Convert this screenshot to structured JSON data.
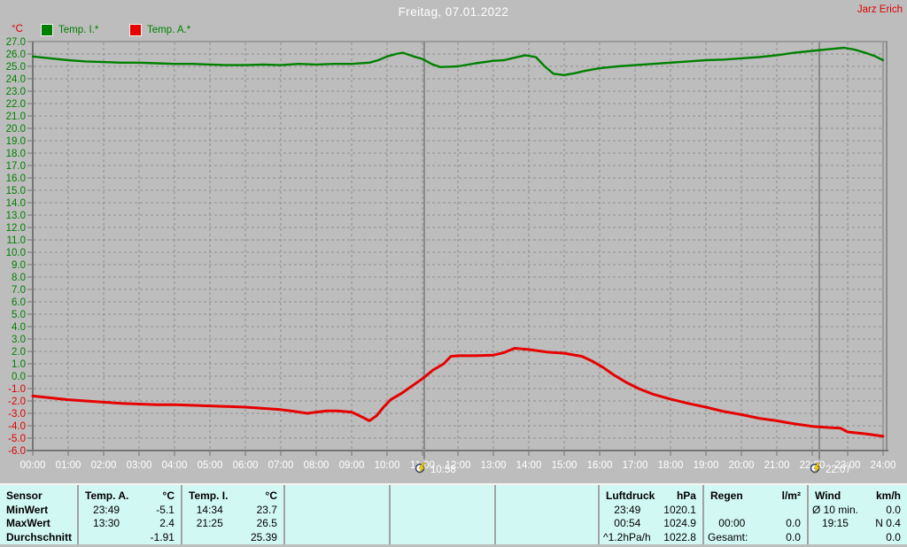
{
  "header": {
    "user": "Jarz Erich"
  },
  "chart_data": {
    "type": "line",
    "title": "Freitag, 07.01.2022",
    "ylabel": "°C",
    "ylim": [
      -6,
      27
    ],
    "ytick_step": 1,
    "xlim_hours": [
      0,
      24
    ],
    "xtick_labels": [
      "00:00",
      "01:00",
      "02:00",
      "03:00",
      "04:00",
      "05:00",
      "06:00",
      "07:00",
      "08:00",
      "09:00",
      "10:00",
      "11:00",
      "12:00",
      "13:00",
      "14:00",
      "15:00",
      "16:00",
      "17:00",
      "18:00",
      "19:00",
      "20:00",
      "21:00",
      "22:00",
      "23:00",
      "24:00"
    ],
    "grid": "dashed",
    "legend_position": "top-left",
    "axis_colors": {
      "positive": "#008000",
      "negative": "#dd0000",
      "time": "#ffffff"
    },
    "series": [
      {
        "id": "temp-i",
        "name": "Temp. I.*",
        "color": "#008000",
        "width": 2.4,
        "x": [
          0,
          0.5,
          1,
          1.5,
          2,
          2.5,
          3,
          3.5,
          4,
          4.5,
          5,
          5.5,
          6,
          6.5,
          7,
          7.5,
          8,
          8.5,
          9,
          9.5,
          9.75,
          10,
          10.25,
          10.45,
          10.75,
          11,
          11.25,
          11.5,
          12,
          12.5,
          13,
          13.3,
          13.6,
          13.9,
          14.2,
          14.45,
          14.7,
          15,
          15.3,
          15.6,
          16,
          16.5,
          17,
          17.5,
          18,
          18.5,
          19,
          19.5,
          20,
          20.5,
          21,
          21.5,
          22,
          22.5,
          22.9,
          23.2,
          23.5,
          23.75,
          24
        ],
        "y": [
          25.8,
          25.65,
          25.5,
          25.4,
          25.35,
          25.3,
          25.3,
          25.25,
          25.2,
          25.2,
          25.15,
          25.1,
          25.1,
          25.15,
          25.1,
          25.2,
          25.15,
          25.2,
          25.2,
          25.3,
          25.5,
          25.8,
          26.0,
          26.1,
          25.8,
          25.6,
          25.2,
          24.95,
          25.0,
          25.25,
          25.45,
          25.5,
          25.7,
          25.9,
          25.75,
          25.0,
          24.4,
          24.3,
          24.45,
          24.65,
          24.85,
          25.0,
          25.1,
          25.2,
          25.3,
          25.4,
          25.5,
          25.55,
          25.65,
          25.75,
          25.9,
          26.1,
          26.25,
          26.4,
          26.5,
          26.35,
          26.1,
          25.85,
          25.5
        ]
      },
      {
        "id": "temp-a",
        "name": "Temp. A.*",
        "color": "#e60000",
        "width": 3,
        "x": [
          0,
          0.5,
          1,
          1.5,
          2,
          2.5,
          3,
          3.5,
          4,
          4.5,
          5,
          5.5,
          6,
          6.5,
          7,
          7.4,
          7.75,
          8,
          8.3,
          8.6,
          9,
          9.3,
          9.5,
          9.7,
          9.9,
          10.1,
          10.4,
          10.7,
          11,
          11.3,
          11.6,
          11.8,
          12,
          12.5,
          13,
          13.3,
          13.6,
          14,
          14.5,
          15,
          15.5,
          15.8,
          16.1,
          16.4,
          16.75,
          17.1,
          17.5,
          18,
          18.5,
          19,
          19.5,
          20,
          20.5,
          21,
          21.5,
          22,
          22.5,
          22.8,
          23,
          23.5,
          24
        ],
        "y": [
          -1.6,
          -1.75,
          -1.9,
          -2.0,
          -2.1,
          -2.2,
          -2.25,
          -2.3,
          -2.3,
          -2.35,
          -2.4,
          -2.45,
          -2.5,
          -2.6,
          -2.7,
          -2.85,
          -3.0,
          -2.9,
          -2.8,
          -2.8,
          -2.9,
          -3.3,
          -3.6,
          -3.2,
          -2.5,
          -1.9,
          -1.4,
          -0.8,
          -0.2,
          0.5,
          1.0,
          1.6,
          1.65,
          1.65,
          1.7,
          1.9,
          2.25,
          2.15,
          1.95,
          1.85,
          1.6,
          1.2,
          0.7,
          0.1,
          -0.5,
          -1.0,
          -1.45,
          -1.85,
          -2.2,
          -2.5,
          -2.85,
          -3.1,
          -3.4,
          -3.6,
          -3.85,
          -4.05,
          -4.15,
          -4.2,
          -4.5,
          -4.65,
          -4.85
        ]
      }
    ],
    "cursors": [
      {
        "label": "10:58",
        "hours": 11.05
      },
      {
        "label": "22:07",
        "hours": 22.2
      }
    ]
  },
  "table": {
    "header_row_label": "Sensor",
    "row_labels": [
      "MinWert",
      "MaxWert",
      "Durchschnitt"
    ],
    "sections": [
      {
        "title": "Temp. A.",
        "unit": "°C",
        "min_time": "23:49",
        "min_value": "-5.1",
        "max_time": "13:30",
        "max_value": "2.4",
        "avg_label": "",
        "avg_value": "-1.91"
      },
      {
        "title": "Temp. I.",
        "unit": "°C",
        "min_time": "14:34",
        "min_value": "23.7",
        "max_time": "21:25",
        "max_value": "26.5",
        "avg_label": "",
        "avg_value": "25.39"
      },
      {
        "title": "Luftdruck",
        "unit": "hPa",
        "min_time": "23:49",
        "min_value": "1020.1",
        "max_time": "00:54",
        "max_value": "1024.9",
        "avg_label": "^1.2hPa/h",
        "avg_value": "1022.8"
      },
      {
        "title": "Regen",
        "unit": "l/m²",
        "min_time": "",
        "min_value": "",
        "max_time": "00:00",
        "max_value": "0.0",
        "avg_label": "Gesamt:",
        "avg_value": "0.0"
      },
      {
        "title": "Wind",
        "unit": "km/h",
        "min_time": "Ø 10 min.",
        "min_value": "0.0",
        "max_time": "19:15",
        "max_value": "N 0.4",
        "avg_label": "",
        "avg_value": "0.0"
      }
    ]
  },
  "colors": {
    "background": "#bdbdbd",
    "table_background": "#d2f8f3",
    "temp_i_green": "#008000",
    "temp_a_red": "#e60000",
    "grid_gray": "#8e8e8e",
    "title_white": "#ffffff"
  }
}
